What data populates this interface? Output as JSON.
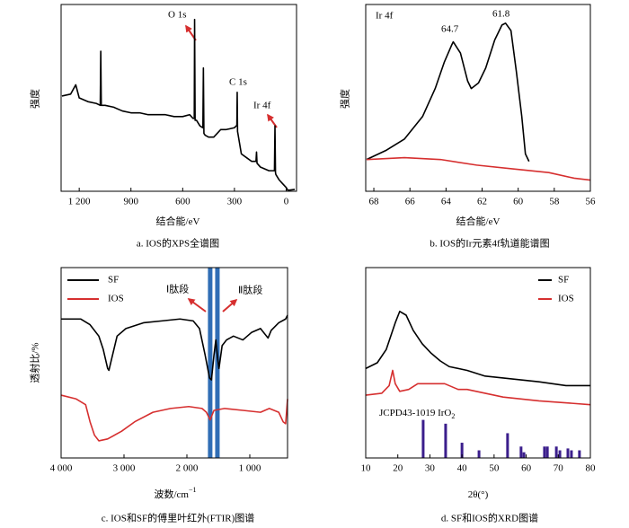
{
  "chart_data": [
    {
      "type": "line",
      "caption": "a.  IOS的XPS全谱图",
      "xlabel": "结合能/eV",
      "ylabel": "强度",
      "xlim": [
        1305,
        -60
      ],
      "ylim": [
        0,
        100
      ],
      "xticks": [
        {
          "value": 1200,
          "label": "1 200"
        },
        900,
        600,
        300,
        0
      ],
      "annotations": [
        "O 1s",
        "C 1s",
        "Ir 4f"
      ],
      "series": [
        {
          "color": "#000000",
          "x": [
            1300,
            1250,
            1220,
            1200,
            1150,
            1100,
            1078,
            1075,
            1072,
            1050,
            1000,
            950,
            900,
            850,
            800,
            750,
            700,
            650,
            600,
            560,
            540,
            533,
            531,
            528,
            520,
            500,
            483,
            480,
            477,
            470,
            450,
            420,
            400,
            380,
            350,
            300,
            290,
            286,
            284,
            282,
            280,
            260,
            230,
            200,
            175,
            172,
            169,
            150,
            100,
            68,
            65,
            62,
            60,
            40,
            20,
            0,
            -10,
            -50
          ],
          "values": [
            51,
            52,
            57,
            50,
            48,
            47,
            46,
            75,
            46,
            46,
            45,
            43,
            42,
            42,
            41,
            41,
            41,
            40,
            40,
            41,
            39,
            39,
            92,
            38,
            38,
            35,
            34,
            66,
            31,
            30,
            29,
            29,
            31,
            33,
            33,
            34,
            35,
            35,
            53,
            32,
            31,
            20,
            18,
            16,
            16,
            21,
            15,
            13,
            11,
            11,
            35,
            10,
            9,
            6,
            4,
            2,
            0.5,
            1
          ]
        }
      ]
    },
    {
      "type": "line",
      "caption": "b.  IOS的Ir元素4f轨道能谱图",
      "xlabel": "结合能/eV",
      "ylabel": "强度",
      "xlim": [
        68.45,
        56
      ],
      "ylim": [
        0,
        100
      ],
      "xticks": [
        68,
        66,
        64,
        62,
        60,
        58,
        56
      ],
      "annotations": [
        "Ir 4f",
        "64.7",
        "61.8"
      ],
      "series": [
        {
          "color": "#000000",
          "x": [
            68.4,
            67.3,
            66.3,
            65.3,
            64.6,
            64.1,
            63.7,
            63.6,
            63.2,
            62.8,
            62.6,
            62.2,
            61.8,
            61.3,
            60.9,
            60.7,
            60.4,
            60.1,
            59.8,
            59.6,
            59.4
          ],
          "values": [
            17,
            22,
            28,
            40,
            55,
            69,
            78,
            80,
            74,
            59,
            55,
            58,
            66,
            81,
            89,
            90,
            86,
            64,
            40,
            20,
            16
          ]
        },
        {
          "color": "#d62f2f",
          "x": [
            68.4,
            66.3,
            64.3,
            62.3,
            60.3,
            58.3,
            56.9,
            56
          ],
          "values": [
            17,
            18,
            17,
            14,
            12,
            10,
            7,
            6
          ]
        }
      ]
    },
    {
      "type": "line",
      "caption": "c.  IOS和SF的傅里叶红外(FTIR)图谱",
      "xlabel": "波数/cm",
      "xlabel_sup": "−1",
      "ylabel": "透射比/%",
      "xlim": [
        4000,
        400
      ],
      "ylim": [
        0,
        100
      ],
      "xticks": [
        {
          "value": 4000,
          "label": "4 000"
        },
        {
          "value": 3000,
          "label": "3 000"
        },
        {
          "value": 2000,
          "label": "2 000"
        },
        {
          "value": 1000,
          "label": "1 000"
        }
      ],
      "legend": "upper left",
      "annotations": [
        "Ⅰ肽段",
        "Ⅱ肽段"
      ],
      "bands": [
        1630,
        1515
      ],
      "band_color": "#2f6db5",
      "series": [
        {
          "name": "SF",
          "color": "#000000",
          "x": [
            4000,
            3690,
            3540,
            3400,
            3330,
            3260,
            3240,
            3190,
            3110,
            2970,
            2690,
            2400,
            2110,
            1900,
            1800,
            1710,
            1640,
            1610,
            1570,
            1540,
            1510,
            1490,
            1440,
            1370,
            1260,
            1110,
            970,
            830,
            710,
            660,
            540,
            430,
            400
          ],
          "values": [
            73,
            73,
            70,
            64,
            57,
            47,
            46,
            53,
            64,
            68,
            71,
            72,
            73,
            72,
            68,
            54,
            42,
            41,
            54,
            62,
            52,
            47,
            59,
            62,
            64,
            62,
            66,
            68,
            63,
            67,
            71,
            73,
            75
          ]
        },
        {
          "name": "IOS",
          "color": "#d62f2f",
          "x": [
            4000,
            3760,
            3610,
            3540,
            3470,
            3400,
            3260,
            3040,
            2830,
            2540,
            2260,
            1970,
            1760,
            1690,
            1630,
            1570,
            1400,
            1110,
            830,
            690,
            540,
            470,
            430,
            400
          ],
          "values": [
            33,
            31,
            28,
            19,
            12,
            9,
            10,
            14,
            19,
            24,
            26,
            27,
            26,
            24,
            20,
            25,
            26,
            25,
            24,
            26,
            24,
            19,
            18,
            31
          ]
        }
      ]
    },
    {
      "type": "line",
      "caption": "d.  SF和IOS的XRD图谱",
      "xlabel": "2θ(°)",
      "xlim": [
        10,
        80
      ],
      "ylim": [
        0,
        100
      ],
      "xticks": [
        10,
        20,
        30,
        40,
        50,
        60,
        70,
        80
      ],
      "legend": "upper right",
      "reference": {
        "label": "JCPD43-1019 IrO",
        "label_sub": "2",
        "color": "#3b1e8c",
        "x": [
          27.9,
          34.9,
          40,
          45.3,
          54.2,
          58.4,
          59.3,
          65.7,
          66.6,
          69.4,
          70.5,
          73,
          74.1,
          76.6
        ],
        "values": [
          20,
          18,
          8,
          4,
          13,
          6,
          3,
          6,
          6,
          6,
          4,
          5,
          4,
          4
        ]
      },
      "series": [
        {
          "name": "SF",
          "color": "#000000",
          "x": [
            10,
            13.6,
            16.4,
            19.2,
            20.6,
            22.6,
            24.8,
            27.6,
            30.4,
            33.2,
            36,
            41.6,
            47.2,
            52.8,
            64,
            72.4,
            80
          ],
          "values": [
            47,
            50,
            57,
            71,
            77,
            75,
            67,
            60,
            55,
            51,
            48,
            46,
            43,
            42,
            40,
            38,
            38
          ]
        },
        {
          "name": "IOS",
          "color": "#d62f2f",
          "x": [
            10,
            15,
            17.3,
            18.4,
            19.2,
            20.6,
            23.4,
            26.2,
            30.4,
            34.6,
            38.8,
            41.6,
            47.2,
            52.8,
            64,
            80
          ],
          "values": [
            33,
            34,
            38,
            46,
            39,
            35,
            36,
            39,
            39,
            39,
            36,
            36,
            34,
            32,
            30,
            28
          ]
        }
      ]
    }
  ]
}
